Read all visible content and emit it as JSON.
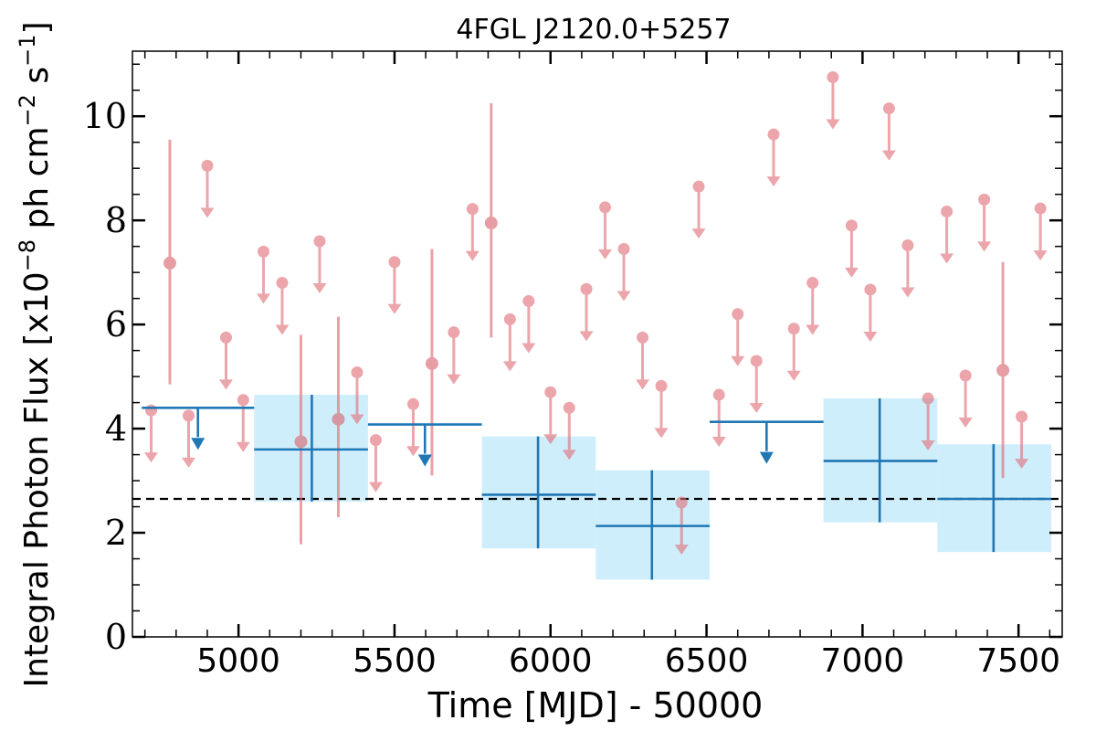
{
  "chart_data": {
    "type": "scatter",
    "title": "4FGL J2120.0+5257",
    "xlabel": "Time [MJD] - 50000",
    "ylabel_main": "Integral Photon Flux [x10",
    "ylabel_exp1": "−8",
    "ylabel_mid": " ph cm",
    "ylabel_exp2": "−2",
    "ylabel_s": " s",
    "ylabel_exp3": "−1",
    "ylabel_end": "]",
    "xlim": [
      4660,
      7640
    ],
    "ylim": [
      0,
      11.25
    ],
    "xticks": [
      5000,
      5500,
      6000,
      6500,
      7000,
      7500
    ],
    "xtick_labels": [
      "5000",
      "5500",
      "6000",
      "6500",
      "7000",
      "7500"
    ],
    "yticks": [
      0,
      2,
      4,
      6,
      8,
      10
    ],
    "ytick_labels": [
      "0",
      "2",
      "4",
      "6",
      "8",
      "10"
    ],
    "baseline": 2.65,
    "colors": {
      "pink": "#e06f78",
      "pink_marker": "#ea8f95",
      "pink_detected": "#d96a72",
      "blue": "#1f77b4",
      "band": "#cfeefc",
      "axis": "#000000"
    },
    "series": [
      {
        "label_key": "short_bins",
        "upper_limits": [
          [
            4720,
            4.35
          ],
          [
            4840,
            4.25
          ],
          [
            4900,
            9.05
          ],
          [
            4960,
            5.75
          ],
          [
            5015,
            4.55
          ],
          [
            5080,
            7.4
          ],
          [
            5140,
            6.8
          ],
          [
            5260,
            7.6
          ],
          [
            5380,
            5.08
          ],
          [
            5440,
            3.78
          ],
          [
            5560,
            4.47
          ],
          [
            5500,
            7.2
          ],
          [
            5690,
            5.85
          ],
          [
            5750,
            8.22
          ],
          [
            5870,
            6.1
          ],
          [
            5930,
            6.45
          ],
          [
            6000,
            4.7
          ],
          [
            6060,
            4.4
          ],
          [
            6115,
            6.68
          ],
          [
            6175,
            8.25
          ],
          [
            6235,
            7.45
          ],
          [
            6295,
            5.75
          ],
          [
            6355,
            4.82
          ],
          [
            6420,
            2.58
          ],
          [
            6475,
            8.65
          ],
          [
            6540,
            4.65
          ],
          [
            6600,
            6.2
          ],
          [
            6660,
            5.3
          ],
          [
            6715,
            9.65
          ],
          [
            6780,
            5.92
          ],
          [
            6840,
            6.8
          ],
          [
            6905,
            10.75
          ],
          [
            6965,
            7.9
          ],
          [
            7025,
            6.67
          ],
          [
            7085,
            10.15
          ],
          [
            7145,
            7.52
          ],
          [
            7210,
            4.58
          ],
          [
            7270,
            8.17
          ],
          [
            7330,
            5.02
          ],
          [
            7390,
            8.4
          ],
          [
            7510,
            4.23
          ],
          [
            7570,
            8.23
          ]
        ],
        "detections": [
          {
            "x": 4780,
            "y": 7.18,
            "lo": 4.85,
            "hi": 9.55
          },
          {
            "x": 5200,
            "y": 3.75,
            "lo": 1.78,
            "hi": 5.8
          },
          {
            "x": 5320,
            "y": 4.18,
            "lo": 2.3,
            "hi": 6.15
          },
          {
            "x": 5620,
            "y": 5.25,
            "lo": 3.1,
            "hi": 7.45
          },
          {
            "x": 5810,
            "y": 7.95,
            "lo": 5.75,
            "hi": 10.25
          },
          {
            "x": 7450,
            "y": 5.12,
            "lo": 3.05,
            "hi": 7.2
          }
        ]
      },
      {
        "label_key": "long_bins",
        "bins": [
          {
            "x0": 4690,
            "x1": 5050,
            "y": 4.4,
            "upper_limit": true
          },
          {
            "x0": 5050,
            "x1": 5415,
            "y": 3.6,
            "lo": 2.6,
            "hi": 4.65,
            "xc": 5235
          },
          {
            "x0": 5415,
            "x1": 5780,
            "y": 4.08,
            "upper_limit": true
          },
          {
            "x0": 5780,
            "x1": 6145,
            "y": 2.73,
            "lo": 1.7,
            "hi": 3.85,
            "xc": 5960
          },
          {
            "x0": 6145,
            "x1": 6510,
            "y": 2.13,
            "lo": 1.1,
            "hi": 3.2,
            "xc": 6325
          },
          {
            "x0": 6510,
            "x1": 6875,
            "y": 4.13,
            "upper_limit": true
          },
          {
            "x0": 6875,
            "x1": 7240,
            "y": 3.38,
            "lo": 2.2,
            "hi": 4.58,
            "xc": 7055
          },
          {
            "x0": 7240,
            "x1": 7605,
            "y": 2.65,
            "lo": 1.63,
            "hi": 3.7,
            "xc": 7420
          }
        ]
      }
    ]
  }
}
